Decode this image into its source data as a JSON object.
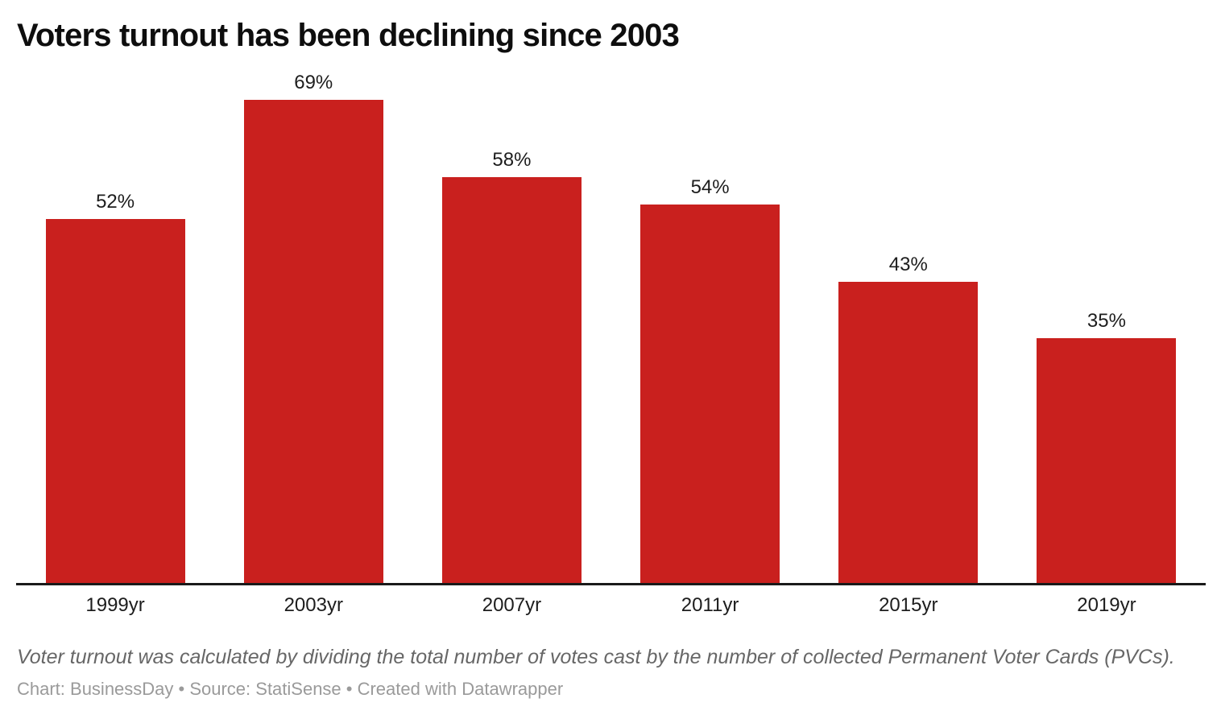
{
  "title": "Voters turnout has been declining since 2003",
  "chart_data": {
    "type": "bar",
    "title": "Voters turnout has been declining since 2003",
    "categories": [
      "1999yr",
      "2003yr",
      "2007yr",
      "2011yr",
      "2015yr",
      "2019yr"
    ],
    "values": [
      52,
      69,
      58,
      54,
      43,
      35
    ],
    "value_labels": [
      "52%",
      "69%",
      "58%",
      "54%",
      "43%",
      "35%"
    ],
    "xlabel": "",
    "ylabel": "",
    "ylim": [
      0,
      69
    ],
    "grid": false,
    "legend": false,
    "bar_color": "#c9201e",
    "axis_line_color": "#1a1a1a",
    "data_label_position": "above-bars"
  },
  "footer": {
    "footnote": "Voter turnout was calculated by dividing the total number of votes cast by the number of collected Permanent Voter Cards (PVCs).",
    "byline": "Chart: BusinessDay • Source: StatiSense • Created with Datawrapper"
  }
}
